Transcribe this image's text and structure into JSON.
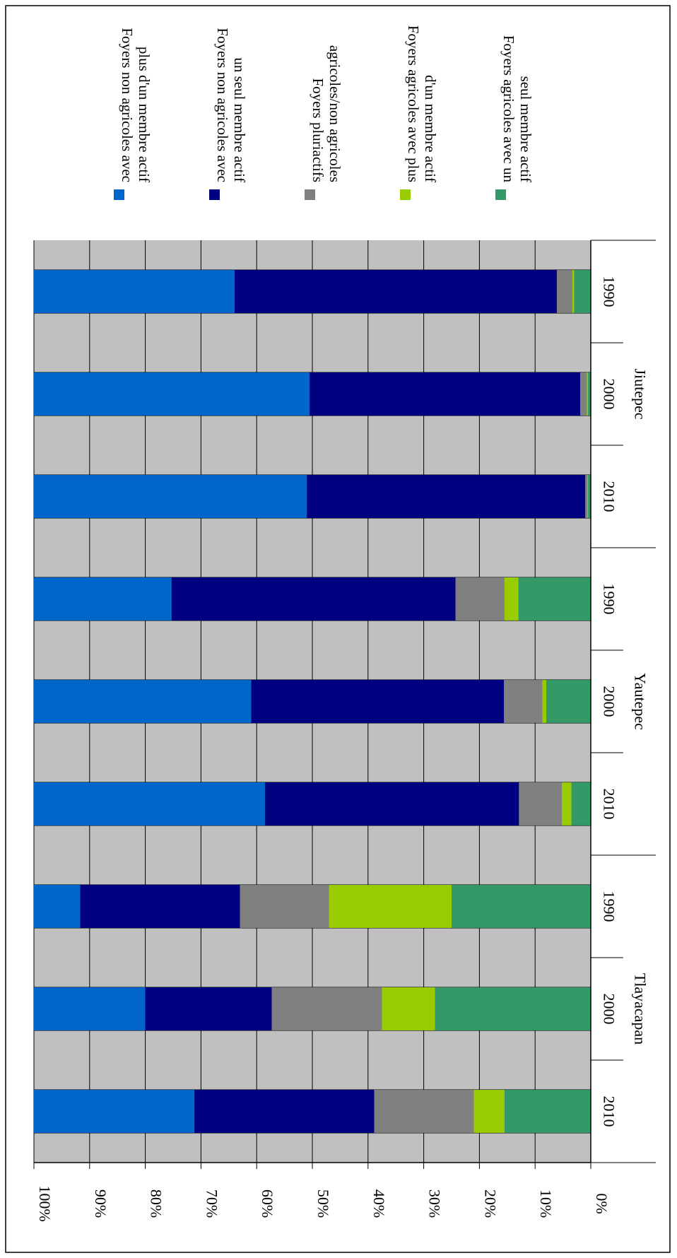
{
  "chart_data": {
    "type": "bar",
    "orientation": "rotated-stacked-percent",
    "title": "",
    "ylabel": "",
    "xlabel": "",
    "ylim": [
      0,
      100
    ],
    "y_ticks": [
      "100%",
      "90%",
      "80%",
      "70%",
      "60%",
      "50%",
      "40%",
      "30%",
      "20%",
      "10%",
      "0%"
    ],
    "grid": true,
    "legend_placement": "right",
    "groups": [
      {
        "name": "Jiutepec",
        "years": [
          "1990",
          "2000",
          "2010"
        ]
      },
      {
        "name": "Yautepec",
        "years": [
          "1990",
          "2000",
          "2010"
        ]
      },
      {
        "name": "Tlayacapan",
        "years": [
          "1990",
          "2000",
          "2010"
        ]
      }
    ],
    "categories": [
      "Jiutepec 1990",
      "Jiutepec 2000",
      "Jiutepec 2010",
      "Yautepec 1990",
      "Yautepec 2000",
      "Yautepec 2010",
      "Tlayacapan 1990",
      "Tlayacapan 2000",
      "Tlayacapan 2010"
    ],
    "series": [
      {
        "name": "Foyers agricoles avec un seul membre actif",
        "legend_lines": [
          "Foyers agricoles avec un",
          "seul membre actif"
        ],
        "color": "#339966",
        "values": [
          3,
          0.5,
          0.5,
          13,
          8,
          3.5,
          25,
          28,
          15.5
        ]
      },
      {
        "name": "Foyers agricoles avec plus d'un membre actif",
        "legend_lines": [
          "Foyers agricoles avec plus",
          "d'un membre actif"
        ],
        "color": "#99cc00",
        "values": [
          0.3,
          0.2,
          0.1,
          2.5,
          0.7,
          1.7,
          22,
          9.5,
          5.5
        ]
      },
      {
        "name": "Foyers pluriactifs agricoles/non agricoles",
        "legend_lines": [
          "Foyers pluriactifs",
          "agricoles/non agricoles"
        ],
        "color": "#808080",
        "values": [
          2.8,
          1.2,
          0.4,
          8.8,
          6.9,
          7.7,
          16,
          19.8,
          17.9
        ]
      },
      {
        "name": "Foyers non agricoles avec un seul membre actif",
        "legend_lines": [
          "Foyers non agricoles avec",
          "un seul membre actif"
        ],
        "color": "#000080",
        "values": [
          57.9,
          48.6,
          50,
          51,
          45.4,
          45.6,
          28.7,
          22.7,
          32.3
        ]
      },
      {
        "name": "Foyers non agricoles avec plus d'un membre actif",
        "legend_lines": [
          "Foyers non agricoles avec",
          "plus d'un membre actif"
        ],
        "color": "#0066cc",
        "values": [
          36,
          49.5,
          49,
          24.7,
          39,
          41.5,
          8.3,
          20,
          28.8
        ]
      }
    ],
    "legend_order": [
      4,
      3,
      2,
      1,
      0
    ]
  }
}
